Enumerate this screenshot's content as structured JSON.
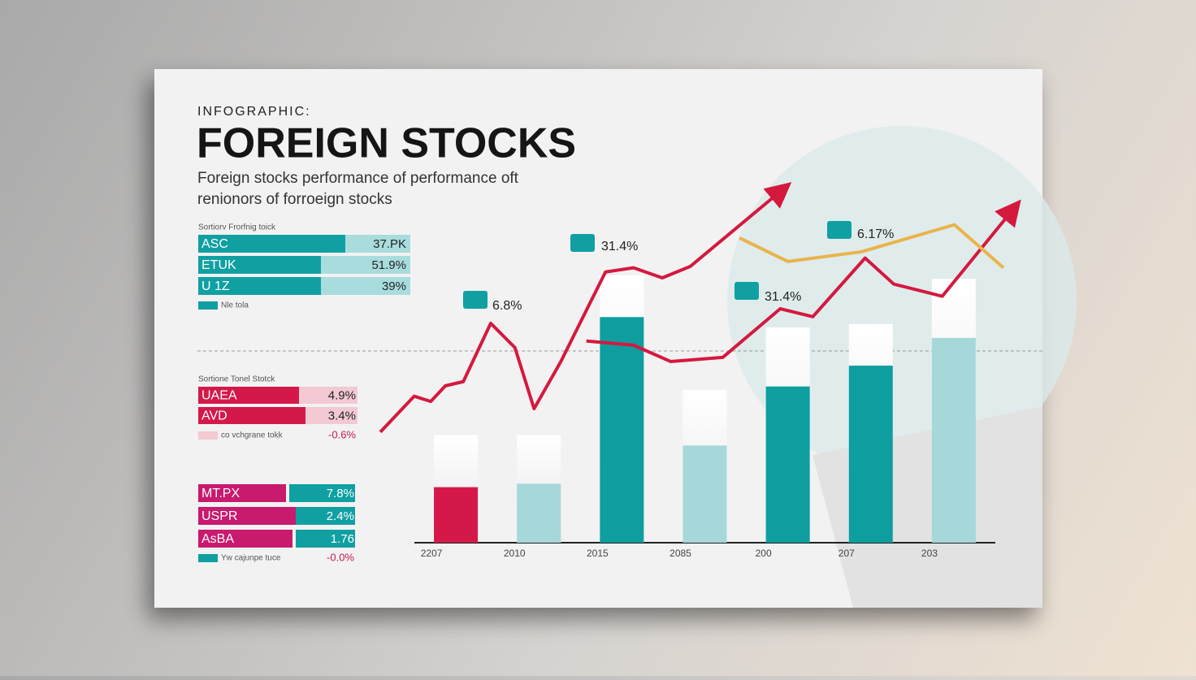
{
  "header": {
    "kicker": "INFOGRAPHIC:",
    "title": "FOREIGN STOCKS",
    "subtitle": [
      "Foreign stocks performance of performance oft",
      "renionors of forroeign stocks"
    ]
  },
  "panels": [
    {
      "caption": "Sortiorv Frorfnig toick",
      "rows": [
        {
          "label": "ASC",
          "value": "37.PK"
        },
        {
          "label": "ETUK",
          "value": "51.9%"
        },
        {
          "label": "U 1Z",
          "value": "39%"
        }
      ],
      "legend": "Nle tola"
    },
    {
      "caption": "Sortione Tonel Stotck",
      "rows": [
        {
          "label": "UAEA",
          "value": "4.9%"
        },
        {
          "label": "AVD",
          "value": "3.4%"
        }
      ],
      "legend": "co vchgrane tokk",
      "legend_value": "-0.6%"
    },
    {
      "rows": [
        {
          "label": "MT.PX",
          "value": "7.8%"
        },
        {
          "label": "USPR",
          "value": "2.4%"
        },
        {
          "label": "AsBA",
          "value": "1.76"
        }
      ],
      "legend": "Yw cajunpe tuce",
      "legend_value": "-0.0%"
    }
  ],
  "chart_data": {
    "type": "bar",
    "categories": [
      "2207",
      "2010",
      "2015",
      "2085",
      "200",
      "207",
      "203"
    ],
    "ylim": [
      0,
      110
    ],
    "xlim": [
      0,
      100
    ],
    "series": [
      {
        "color": "#f1f1f1",
        "values": [
          31,
          31,
          77,
          44,
          62,
          63,
          76
        ]
      },
      {
        "colors": [
          "#d4194a",
          "#a6d8da",
          "#0e9e9f",
          "#a6d8da",
          "#0e9e9f",
          "#0e9e9f",
          "#a6d8da"
        ],
        "values": [
          16,
          17,
          65,
          28,
          45,
          51,
          59
        ]
      }
    ],
    "lines": [
      {
        "color": "#d4193f",
        "x": [
          0.4,
          5.7,
          8.3,
          10.6,
          13.4,
          17.7,
          21.5,
          24.5,
          28.7,
          35.7,
          40.1,
          44.6,
          49.0,
          63.7
        ],
        "values": [
          31.9,
          42.2,
          40.7,
          45.2,
          46.4,
          63.2,
          56.2,
          38.6,
          52.2,
          78.0,
          79.2,
          76.3,
          79.6,
          102.1
        ]
      },
      {
        "color": "#d4193f",
        "x": [
          32.7,
          40.1,
          45.9,
          54.1,
          63.1,
          68.2,
          76.4,
          80.9,
          88.5,
          99.9
        ],
        "values": [
          58.1,
          56.9,
          52.2,
          53.4,
          67.4,
          65.1,
          82.0,
          74.5,
          71.0,
          96.7
        ]
      },
      {
        "color": "#e9b44c",
        "x": [
          56.7,
          64.3,
          75.8,
          90.4,
          98.1
        ],
        "values": [
          87.8,
          81.0,
          83.8,
          91.6,
          79.2
        ]
      }
    ],
    "annotations": [
      "6.8%",
      "31.4%",
      "31.4%",
      "6.17%"
    ]
  }
}
